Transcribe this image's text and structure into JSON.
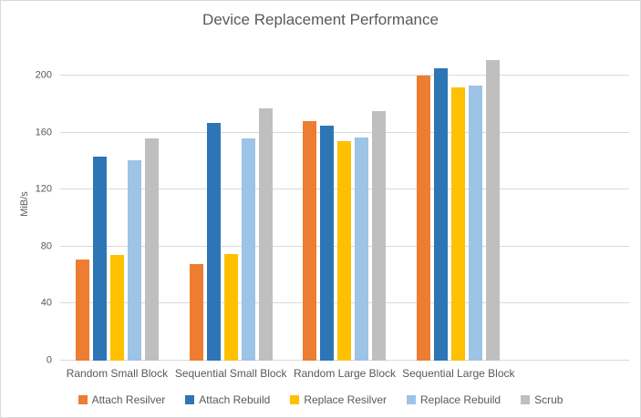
{
  "chart_data": {
    "type": "bar",
    "title": "Device Replacement Performance",
    "xlabel": "",
    "ylabel": "MiB/s",
    "categories": [
      "Random Small Block",
      "Sequential Small Block",
      "Random Large Block",
      "Sequential Large Block"
    ],
    "series": [
      {
        "name": "Attach Resilver",
        "color": "#ED7D31",
        "values": [
          71,
          68,
          168,
          200
        ]
      },
      {
        "name": "Attach Rebuild",
        "color": "#2E75B6",
        "values": [
          143,
          167,
          165,
          205
        ]
      },
      {
        "name": "Replace Resilver",
        "color": "#FFC000",
        "values": [
          74,
          75,
          154,
          192
        ]
      },
      {
        "name": "Replace Rebuild",
        "color": "#9DC3E6",
        "values": [
          141,
          156,
          157,
          193
        ]
      },
      {
        "name": "Scrub",
        "color": "#BFBFBF",
        "values": [
          156,
          177,
          175,
          211
        ]
      }
    ],
    "ylim": [
      0,
      220
    ],
    "yticks": [
      0,
      40,
      80,
      120,
      160,
      200
    ],
    "grid": true,
    "legend_position": "bottom",
    "extra_right_slot": true
  },
  "style": {
    "text_color": "#595959",
    "grid_color": "#D9D9D9",
    "border_color": "#D9D9D9",
    "background": "#FFFFFF"
  }
}
